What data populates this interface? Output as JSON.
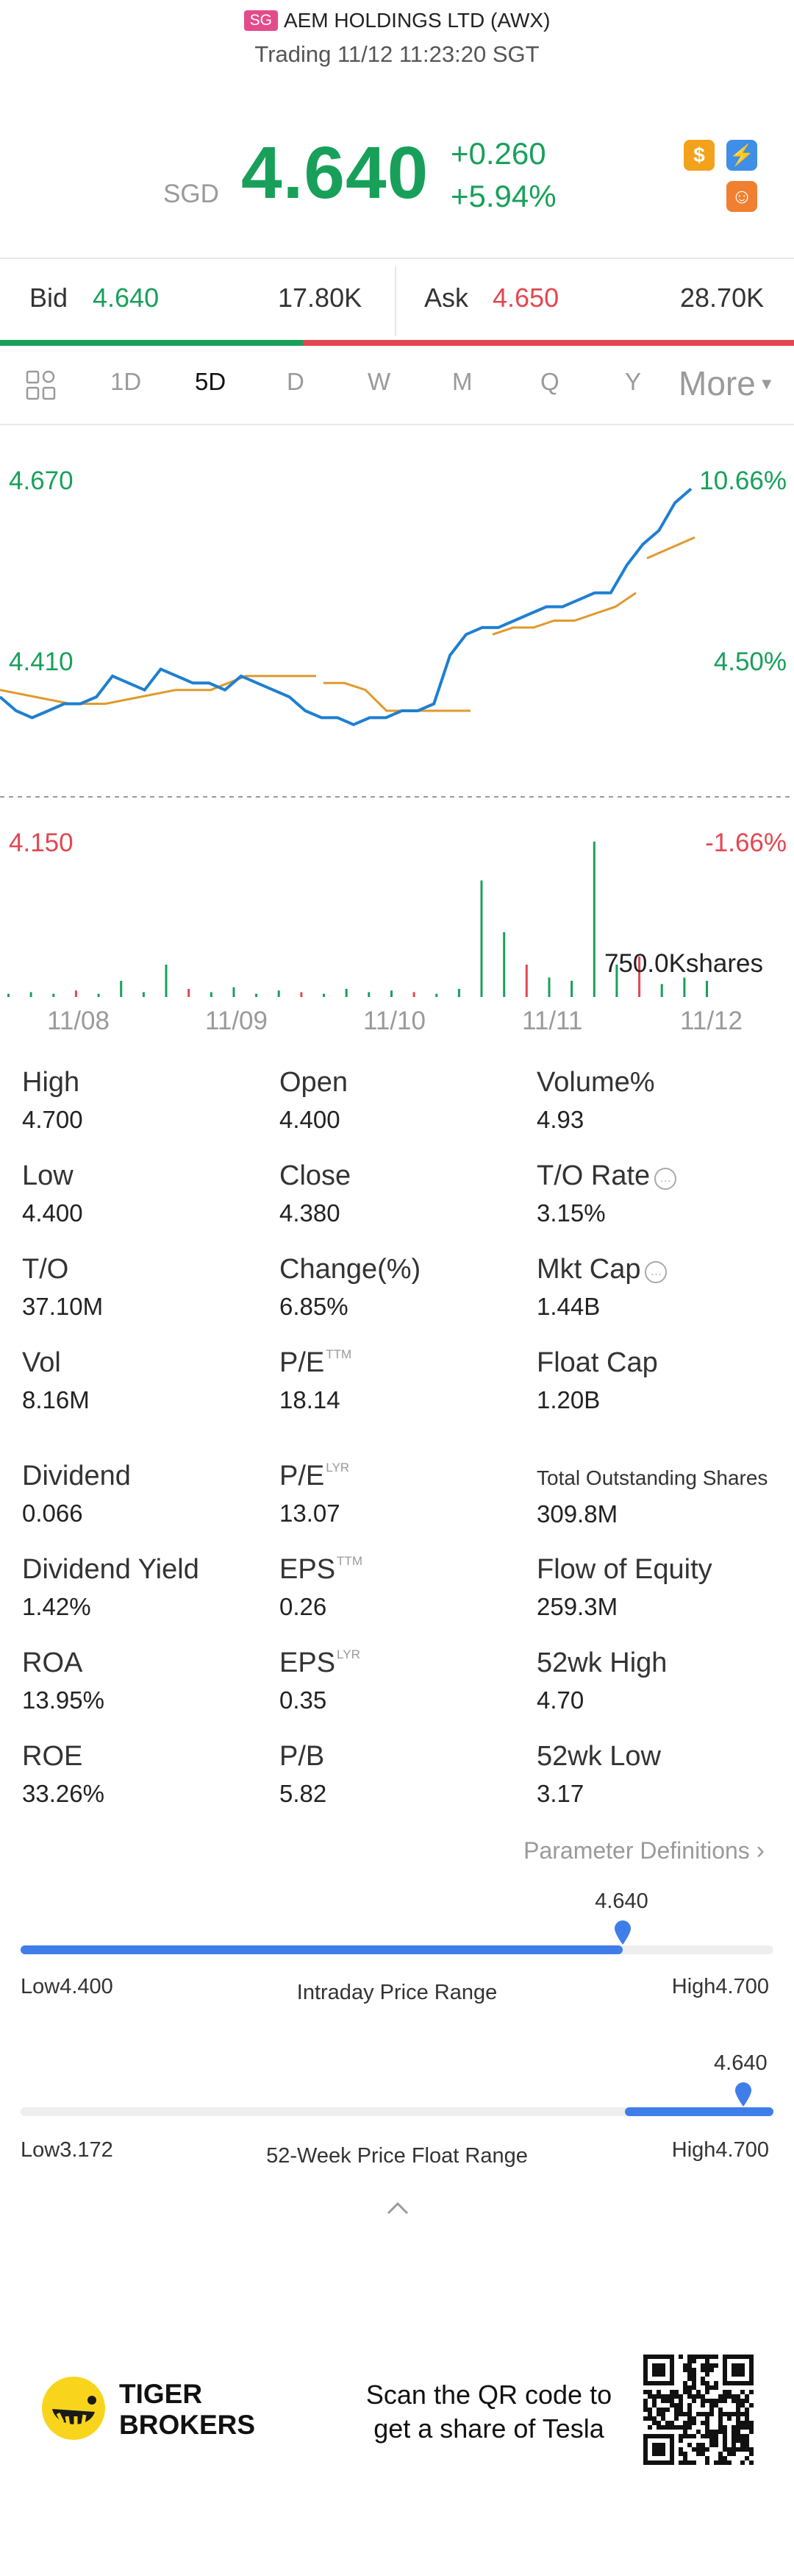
{
  "header": {
    "exchange_badge": "SG",
    "title": "AEM HOLDINGS LTD (AWX)",
    "status": "Trading 11/12 11:23:20 SGT"
  },
  "quote": {
    "currency": "SGD",
    "price": "4.640",
    "change": "+0.260",
    "change_pct": "+5.94%",
    "icons": [
      "dollar-icon",
      "flash-icon",
      "tiger-icon"
    ]
  },
  "bidask": {
    "bid_label": "Bid",
    "bid_price": "4.640",
    "bid_size": "17.80K",
    "ask_label": "Ask",
    "ask_price": "4.650",
    "ask_size": "28.70K"
  },
  "tabs": [
    "1D",
    "5D",
    "D",
    "W",
    "M",
    "Q",
    "Y"
  ],
  "tabs_active": "5D",
  "tabs_more": "More",
  "chart_data": {
    "type": "line",
    "y_labels_left": [
      "4.670",
      "4.410",
      "4.150"
    ],
    "y_labels_right": [
      "10.66%",
      "4.50%",
      "-1.66%"
    ],
    "x_labels": [
      "11/08",
      "11/09",
      "11/10",
      "11/11",
      "11/12"
    ],
    "prev_close": 4.38,
    "ylim": [
      4.15,
      4.67
    ],
    "volume_label": "750.0Kshares",
    "series": [
      {
        "values": [
          4.36,
          4.34,
          4.33,
          4.34,
          4.35,
          4.35,
          4.36,
          4.39,
          4.38,
          4.37,
          4.4,
          4.39,
          4.38,
          4.38,
          4.37,
          4.39,
          4.38,
          4.37,
          4.36,
          4.34,
          4.33,
          4.33,
          4.32,
          4.33,
          4.33,
          4.34,
          4.34,
          4.35,
          4.42,
          4.45,
          4.46,
          4.46,
          4.47,
          4.48,
          4.49,
          4.49,
          4.5,
          4.51,
          4.51,
          4.55,
          4.58,
          4.6,
          4.64,
          4.66
        ]
      },
      {
        "values": [
          4.37,
          4.36,
          4.35,
          4.35,
          4.36,
          4.37,
          4.37,
          4.39,
          4.39,
          4.39,
          4.38,
          4.38,
          4.37,
          4.34,
          4.34,
          4.34,
          4.34,
          4.34,
          4.45,
          4.46,
          4.46,
          4.47,
          4.47,
          4.48,
          4.49,
          4.51,
          4.56,
          4.59
        ]
      }
    ],
    "volume": [
      0.02,
      0.03,
      0.02,
      0.04,
      0.02,
      0.1,
      0.03,
      0.2,
      0.05,
      0.03,
      0.06,
      0.02,
      0.04,
      0.03,
      0.02,
      0.05,
      0.03,
      0.04,
      0.03,
      0.02,
      0.05,
      0.72,
      0.4,
      0.2,
      0.12,
      0.1,
      0.96,
      0.2,
      0.25,
      0.08,
      0.12,
      0.1
    ]
  },
  "stats": [
    {
      "label": "High",
      "value": "4.700"
    },
    {
      "label": "Open",
      "value": "4.400"
    },
    {
      "label": "Volume%",
      "value": "4.93"
    },
    {
      "label": "Low",
      "value": "4.400"
    },
    {
      "label": "Close",
      "value": "4.380"
    },
    {
      "label": "T/O Rate",
      "value": "3.15%",
      "info": true
    },
    {
      "label": "T/O",
      "value": "37.10M"
    },
    {
      "label": "Change(%)",
      "value": "6.85%"
    },
    {
      "label": "Mkt Cap",
      "value": "1.44B",
      "info": true
    },
    {
      "label": "Vol",
      "value": "8.16M"
    },
    {
      "label": "P/E",
      "sup": "TTM",
      "value": "18.14"
    },
    {
      "label": "Float Cap",
      "value": "1.20B"
    }
  ],
  "stats2": [
    {
      "label": "Dividend",
      "value": "0.066"
    },
    {
      "label": "P/E",
      "sup": "LYR",
      "value": "13.07"
    },
    {
      "label": "Total Outstanding Shares",
      "value": "309.8M",
      "small": true
    },
    {
      "label": "Dividend Yield",
      "value": "1.42%"
    },
    {
      "label": "EPS",
      "sup": "TTM",
      "value": "0.26"
    },
    {
      "label": "Flow of Equity",
      "value": "259.3M"
    },
    {
      "label": "ROA",
      "value": "13.95%"
    },
    {
      "label": "EPS",
      "sup": "LYR",
      "value": "0.35"
    },
    {
      "label": "52wk High",
      "value": "4.70"
    },
    {
      "label": "ROE",
      "value": "33.26%"
    },
    {
      "label": "P/B",
      "value": "5.82"
    },
    {
      "label": "52wk Low",
      "value": "3.17"
    }
  ],
  "param_link": "Parameter Definitions",
  "intraday": {
    "current": "4.640",
    "low": "Low4.400",
    "high": "High4.700",
    "title": "Intraday Price Range",
    "fraction": 0.8
  },
  "week52": {
    "current": "4.640",
    "low": "Low3.172",
    "high": "High4.700",
    "title": "52-Week Price Float Range",
    "fraction": 0.96
  },
  "footer": {
    "brand_line1": "TIGER",
    "brand_line2": "BROKERS",
    "promo_line1": "Scan the QR code to",
    "promo_line2": "get a share of Tesla"
  },
  "colors": {
    "up": "#18a05a",
    "down": "#e4464f",
    "accent": "#3f7ee8",
    "line": "#1f7fd1",
    "avg": "#e09a2b"
  }
}
